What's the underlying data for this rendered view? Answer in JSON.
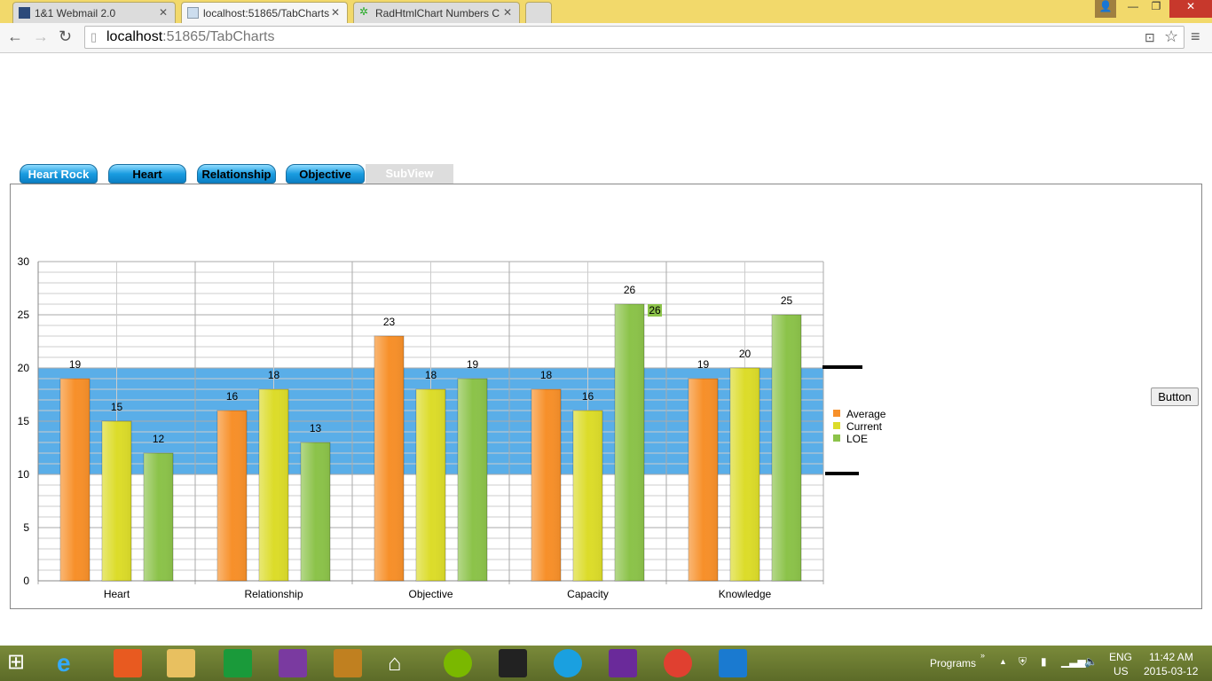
{
  "browser": {
    "tabs": [
      {
        "label": "1&1 Webmail 2.0"
      },
      {
        "label": "localhost:51865/TabCharts"
      },
      {
        "label": "RadHtmlChart Numbers C"
      }
    ],
    "url_host": "localhost",
    "url_rest": ":51865/TabCharts"
  },
  "page": {
    "tabs": [
      "Heart Rock",
      "Heart",
      "Relationship",
      "Objective",
      "SubView"
    ],
    "button_label": "Button"
  },
  "chart_data": {
    "type": "bar",
    "categories": [
      "Heart",
      "Relationship",
      "Objective",
      "Capacity",
      "Knowledge"
    ],
    "series": [
      {
        "name": "Average",
        "color": "#f7902a",
        "values": [
          19,
          16,
          23,
          18,
          19
        ]
      },
      {
        "name": "Current",
        "color": "#dcdc2a",
        "values": [
          15,
          18,
          18,
          16,
          20
        ]
      },
      {
        "name": "LOE",
        "color": "#8cc34a",
        "values": [
          12,
          13,
          19,
          26,
          25
        ]
      }
    ],
    "ylim": [
      0,
      30
    ],
    "yticks": [
      0,
      5,
      10,
      15,
      20,
      25,
      30
    ],
    "band": {
      "from": 10,
      "to": 20,
      "color": "#5aaee8"
    },
    "highlight_label": "26",
    "legend": "right",
    "grid": true
  },
  "taskbar": {
    "toolbar_label": "Programs",
    "lang1": "ENG",
    "lang2": "US",
    "time": "11:42 AM",
    "date": "2015-03-12"
  }
}
